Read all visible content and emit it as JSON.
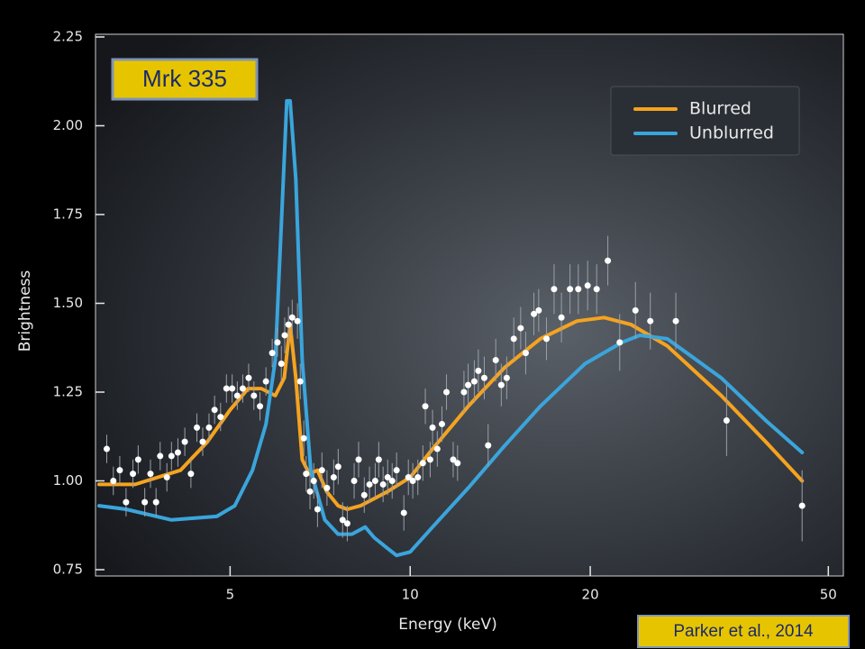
{
  "chart_data": {
    "type": "line",
    "annotations": [
      "Mrk 335",
      "Parker et al., 2014"
    ],
    "xlabel": "Energy (keV)",
    "ylabel": "Brightness",
    "log_x": true,
    "xlim": [
      3.02,
      52.8
    ],
    "xticks": [
      5,
      10,
      20,
      50
    ],
    "ylim": [
      0.75,
      2.25
    ],
    "yticks": [
      {
        "value": 0.75,
        "label": "0.75"
      },
      {
        "value": 1.0,
        "label": "1.00"
      },
      {
        "value": 1.25,
        "label": "1.25"
      },
      {
        "value": 1.5,
        "label": "1.50"
      },
      {
        "value": 1.75,
        "label": "1.75"
      },
      {
        "value": 2.0,
        "label": "2.00"
      },
      {
        "value": 2.25,
        "label": "2.25"
      }
    ],
    "legend": "upper right",
    "series": [
      {
        "name": "Blurred",
        "color": "#f5a31f",
        "x": [
          3.02,
          3.47,
          4.13,
          4.58,
          5,
          5.36,
          5.64,
          5.95,
          6.16,
          6.3,
          6.44,
          6.6,
          6.78,
          7.0,
          7.25,
          7.58,
          7.85,
          8.26,
          9.17,
          10,
          10.9,
          12.5,
          14.4,
          16.5,
          19.0,
          21.1,
          23.4,
          26.9,
          33.1,
          39.3,
          45.2
        ],
        "values": [
          0.99,
          0.99,
          1.03,
          1.11,
          1.2,
          1.26,
          1.26,
          1.24,
          1.29,
          1.44,
          1.29,
          1.06,
          1.02,
          1.03,
          0.97,
          0.93,
          0.92,
          0.93,
          0.97,
          1.01,
          1.09,
          1.21,
          1.32,
          1.4,
          1.45,
          1.46,
          1.44,
          1.38,
          1.24,
          1.11,
          1.0
        ]
      },
      {
        "name": "Unblurred",
        "color": "#3aa5dc",
        "x": [
          3.02,
          3.35,
          3.99,
          4.75,
          5.09,
          5.45,
          5.74,
          5.95,
          6.09,
          6.22,
          6.3,
          6.44,
          6.6,
          6.82,
          7.2,
          7.58,
          7.99,
          8.41,
          8.71,
          9.17,
          9.49,
          10,
          10.9,
          12.5,
          14.4,
          16.5,
          19.6,
          22.6,
          24.2,
          26.9,
          33.1,
          39.3,
          45.2
        ],
        "values": [
          0.93,
          0.92,
          0.89,
          0.9,
          0.93,
          1.03,
          1.16,
          1.34,
          1.72,
          2.07,
          2.07,
          1.85,
          1.34,
          1.03,
          0.89,
          0.85,
          0.85,
          0.87,
          0.84,
          0.81,
          0.79,
          0.8,
          0.87,
          0.98,
          1.1,
          1.21,
          1.33,
          1.39,
          1.41,
          1.4,
          1.29,
          1.17,
          1.08
        ]
      },
      {
        "type": "scatter",
        "color": "#ffffff",
        "x": [
          3.11,
          3.19,
          3.27,
          3.35,
          3.44,
          3.51,
          3.6,
          3.68,
          3.76,
          3.82,
          3.92,
          3.99,
          4.09,
          4.2,
          4.3,
          4.4,
          4.5,
          4.61,
          4.71,
          4.82,
          4.93,
          5.04,
          5.14,
          5.25,
          5.37,
          5.48,
          5.61,
          5.74,
          5.88,
          6.0,
          6.09,
          6.17,
          6.26,
          6.35,
          6.48,
          6.55,
          6.64,
          6.7,
          6.8,
          6.9,
          7.0,
          7.12,
          7.26,
          7.45,
          7.58,
          7.71,
          7.85,
          8.06,
          8.2,
          8.38,
          8.55,
          8.74,
          8.86,
          9.01,
          9.17,
          9.33,
          9.49,
          9.76,
          9.93,
          10.1,
          10.3,
          10.5,
          10.6,
          10.8,
          10.9,
          11.1,
          11.3,
          11.5,
          11.8,
          12.0,
          12.3,
          12.5,
          12.8,
          13.0,
          13.3,
          13.5,
          13.9,
          14.2,
          14.5,
          14.9,
          15.3,
          15.6,
          16.1,
          16.4,
          16.9,
          17.4,
          17.9,
          18.5,
          19.1,
          19.8,
          20.5,
          21.4,
          22.4,
          23.8,
          25.2,
          27.8,
          33.8,
          45.2
        ],
        "values": [
          1.09,
          1.0,
          1.03,
          0.94,
          1.02,
          1.06,
          0.94,
          1.02,
          0.94,
          1.07,
          1.01,
          1.07,
          1.08,
          1.11,
          1.02,
          1.15,
          1.11,
          1.15,
          1.2,
          1.18,
          1.26,
          1.26,
          1.24,
          1.26,
          1.29,
          1.24,
          1.21,
          1.28,
          1.36,
          1.39,
          1.33,
          1.41,
          1.44,
          1.46,
          1.45,
          1.28,
          1.12,
          1.02,
          0.97,
          1.0,
          0.92,
          1.03,
          0.98,
          1.01,
          1.04,
          0.89,
          0.88,
          1.0,
          1.06,
          0.96,
          0.99,
          1.0,
          1.06,
          0.99,
          1.01,
          1.0,
          1.03,
          0.91,
          1.01,
          1.0,
          1.01,
          1.05,
          1.21,
          1.06,
          1.15,
          1.09,
          1.16,
          1.25,
          1.06,
          1.05,
          1.25,
          1.27,
          1.28,
          1.31,
          1.29,
          1.1,
          1.34,
          1.27,
          1.29,
          1.4,
          1.43,
          1.36,
          1.47,
          1.48,
          1.4,
          1.54,
          1.46,
          1.54,
          1.54,
          1.55,
          1.54,
          1.62,
          1.39,
          1.48,
          1.45,
          1.45,
          1.17,
          0.93
        ],
        "errors": [
          0.04,
          0.04,
          0.04,
          0.04,
          0.04,
          0.04,
          0.04,
          0.04,
          0.04,
          0.04,
          0.04,
          0.04,
          0.04,
          0.04,
          0.04,
          0.04,
          0.04,
          0.04,
          0.04,
          0.04,
          0.04,
          0.04,
          0.04,
          0.04,
          0.04,
          0.04,
          0.04,
          0.04,
          0.04,
          0.04,
          0.05,
          0.05,
          0.05,
          0.05,
          0.05,
          0.05,
          0.05,
          0.05,
          0.05,
          0.05,
          0.05,
          0.05,
          0.05,
          0.05,
          0.05,
          0.05,
          0.05,
          0.05,
          0.05,
          0.05,
          0.05,
          0.05,
          0.05,
          0.05,
          0.05,
          0.05,
          0.05,
          0.05,
          0.05,
          0.05,
          0.05,
          0.05,
          0.05,
          0.05,
          0.05,
          0.05,
          0.05,
          0.05,
          0.05,
          0.05,
          0.06,
          0.06,
          0.06,
          0.06,
          0.06,
          0.06,
          0.06,
          0.06,
          0.06,
          0.06,
          0.06,
          0.06,
          0.06,
          0.06,
          0.06,
          0.07,
          0.07,
          0.07,
          0.07,
          0.07,
          0.07,
          0.07,
          0.08,
          0.08,
          0.08,
          0.08,
          0.1,
          0.1
        ]
      }
    ]
  }
}
